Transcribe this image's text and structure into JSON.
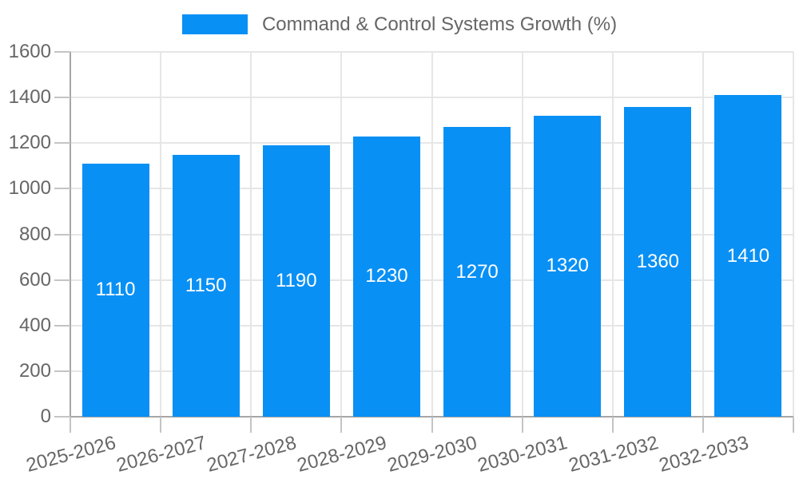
{
  "chart_data": {
    "type": "bar",
    "title": "",
    "categories": [
      "2025-2026",
      "2026-2027",
      "2027-2028",
      "2028-2029",
      "2029-2030",
      "2030-2031",
      "2031-2032",
      "2032-2033"
    ],
    "series": [
      {
        "name": "Command & Control Systems Growth (%)",
        "values": [
          1110,
          1150,
          1190,
          1230,
          1270,
          1320,
          1360,
          1410
        ]
      }
    ],
    "xlabel": "",
    "ylabel": "",
    "ylim": [
      0,
      1600
    ],
    "yticks": [
      0,
      200,
      400,
      600,
      800,
      1000,
      1200,
      1400,
      1600
    ],
    "grid": true,
    "legend_position": "top",
    "value_labels": "inside-center"
  },
  "colors": {
    "bar": "#0990f5",
    "grid_line": "#e6e6e6",
    "axis_line": "#a6a6a6",
    "tick_mark": "#c4c4c4",
    "tick_label_text": "#666666",
    "legend_text": "#666666",
    "value_label_text": "#ffffff",
    "background": "#ffffff"
  }
}
